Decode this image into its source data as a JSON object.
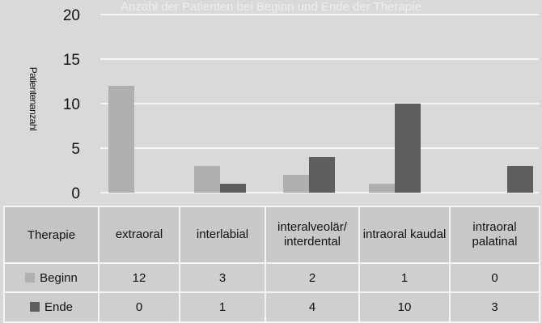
{
  "chart_data": {
    "type": "bar",
    "title": "Anzahl der Patienten bei Beginn und Ende der Therapie",
    "xlabel": "Therapie",
    "ylabel": "Patientenanzahl",
    "ylim": [
      0,
      20
    ],
    "yticks": [
      "0",
      "5",
      "10",
      "15",
      "20"
    ],
    "grid": true,
    "categories": [
      "extraoral",
      "interlabial",
      "interalveolär/ interdental",
      "intraoral kaudal",
      "intraoral palatinal"
    ],
    "series": [
      {
        "name": "Beginn",
        "values": [
          12,
          3,
          2,
          1,
          0
        ],
        "color": "#b0b0b0"
      },
      {
        "name": "Ende",
        "values": [
          0,
          1,
          4,
          10,
          3
        ],
        "color": "#5e5e5e"
      }
    ]
  }
}
